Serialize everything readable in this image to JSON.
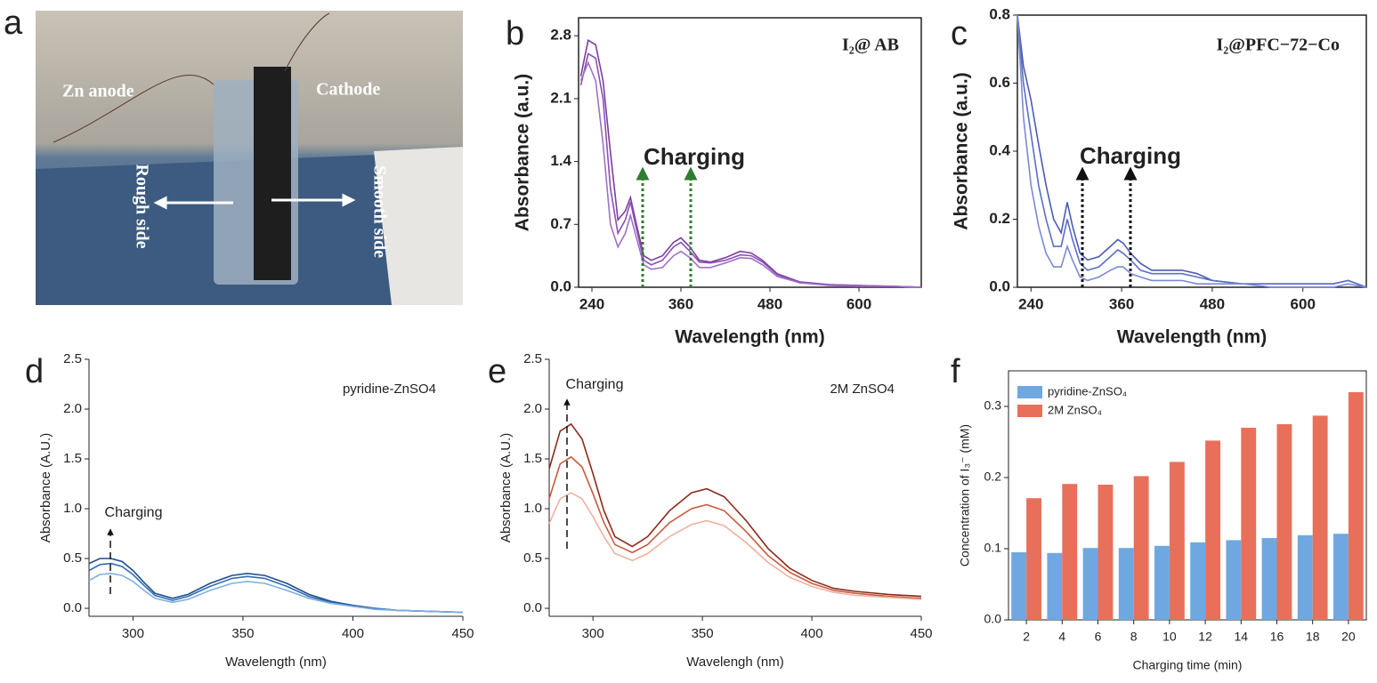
{
  "photo": {
    "panel": "a",
    "labels": [
      "Zn anode",
      "Cathode",
      "Rough side",
      "Smooth side"
    ]
  },
  "chart_data": [
    {
      "type": "line",
      "panel": "b",
      "label": "I₂@ AB",
      "annotation": "Charging",
      "xlabel": "Wavelength (nm)",
      "ylabel": "Absorbance (a.u.)",
      "xlim": [
        222,
        684
      ],
      "ylim": [
        0,
        3.0
      ],
      "xticks": [
        240,
        360,
        480,
        600
      ],
      "yticks": [
        {
          "value": 0,
          "label": "0.0"
        },
        0.7,
        1.4,
        2.1,
        2.8
      ],
      "x": [
        225,
        235,
        245,
        255,
        265,
        275,
        285,
        292,
        300,
        310,
        320,
        335,
        350,
        360,
        372,
        385,
        400,
        420,
        440,
        455,
        470,
        490,
        520,
        560,
        600,
        650,
        684
      ],
      "series": [
        {
          "color": "#7b3fa0",
          "values": [
            2.35,
            2.75,
            2.7,
            2.3,
            1.5,
            0.75,
            0.85,
            1.0,
            0.7,
            0.35,
            0.3,
            0.35,
            0.5,
            0.55,
            0.45,
            0.3,
            0.28,
            0.33,
            0.4,
            0.38,
            0.3,
            0.15,
            0.06,
            0.03,
            0.02,
            0.01,
            0
          ]
        },
        {
          "color": "#8e4fb5",
          "values": [
            2.25,
            2.6,
            2.55,
            2.1,
            1.1,
            0.6,
            0.75,
            0.95,
            0.65,
            0.3,
            0.25,
            0.3,
            0.45,
            0.5,
            0.4,
            0.28,
            0.27,
            0.3,
            0.36,
            0.35,
            0.28,
            0.14,
            0.05,
            0.03,
            0.02,
            0.01,
            0
          ]
        },
        {
          "color": "#a070c8",
          "values": [
            2.3,
            2.5,
            2.3,
            1.6,
            0.7,
            0.45,
            0.6,
            0.8,
            0.55,
            0.25,
            0.2,
            0.22,
            0.35,
            0.4,
            0.33,
            0.22,
            0.22,
            0.27,
            0.33,
            0.32,
            0.25,
            0.12,
            0.05,
            0.02,
            0.01,
            0.01,
            0
          ]
        }
      ]
    },
    {
      "type": "line",
      "panel": "c",
      "label": "I₂@PFC−72−Co",
      "annotation": "Charging",
      "xlabel": "Wavelength (nm)",
      "ylabel": "Absorbance (a.u.)",
      "xlim": [
        222,
        684
      ],
      "ylim": [
        0,
        0.8
      ],
      "xticks": [
        240,
        360,
        480,
        600
      ],
      "yticks": [
        {
          "value": 0,
          "label": "0.0"
        },
        0.2,
        0.4,
        0.6,
        0.8
      ],
      "x": [
        222,
        230,
        240,
        250,
        260,
        270,
        280,
        288,
        295,
        305,
        315,
        330,
        345,
        355,
        362,
        372,
        385,
        400,
        420,
        440,
        460,
        480,
        520,
        560,
        600,
        640,
        660,
        684
      ],
      "series": [
        {
          "color": "#4a5cb5",
          "values": [
            0.8,
            0.65,
            0.55,
            0.42,
            0.3,
            0.2,
            0.16,
            0.25,
            0.18,
            0.1,
            0.08,
            0.09,
            0.12,
            0.14,
            0.13,
            0.1,
            0.07,
            0.05,
            0.05,
            0.05,
            0.04,
            0.02,
            0.01,
            0.01,
            0.01,
            0.01,
            0.02,
            0
          ]
        },
        {
          "color": "#5b6fc7",
          "values": [
            0.8,
            0.6,
            0.45,
            0.3,
            0.2,
            0.12,
            0.12,
            0.2,
            0.14,
            0.07,
            0.05,
            0.06,
            0.09,
            0.11,
            0.1,
            0.08,
            0.05,
            0.04,
            0.04,
            0.04,
            0.03,
            0.02,
            0.01,
            0.01,
            0.01,
            0.01,
            0.02,
            0
          ]
        },
        {
          "color": "#7a8ad6",
          "values": [
            0.8,
            0.5,
            0.3,
            0.18,
            0.1,
            0.06,
            0.06,
            0.12,
            0.08,
            0.03,
            0.02,
            0.03,
            0.05,
            0.06,
            0.06,
            0.04,
            0.03,
            0.02,
            0.02,
            0.02,
            0.01,
            0.01,
            0.01,
            0,
            0,
            0,
            0.01,
            0
          ]
        }
      ]
    },
    {
      "type": "line",
      "panel": "d",
      "label": "pyridine-ZnSO4",
      "annotation": "Charging",
      "xlabel": "Wavelength (nm)",
      "ylabel": "Absorbance (A.U.)",
      "xlim": [
        280,
        450
      ],
      "ylim": [
        -0.08,
        2.5
      ],
      "xticks": [
        300,
        350,
        400,
        450
      ],
      "yticks": [
        {
          "value": 0,
          "label": "0.0"
        },
        0.5,
        {
          "value": 1,
          "label": "1.0"
        },
        1.5,
        {
          "value": 2,
          "label": "2.0"
        },
        2.5
      ],
      "x": [
        280,
        285,
        290,
        295,
        300,
        305,
        310,
        318,
        325,
        335,
        345,
        352,
        360,
        370,
        380,
        390,
        400,
        410,
        420,
        435,
        450
      ],
      "series": [
        {
          "color": "#1f4e8c",
          "values": [
            0.45,
            0.5,
            0.5,
            0.47,
            0.38,
            0.26,
            0.15,
            0.1,
            0.14,
            0.25,
            0.33,
            0.35,
            0.33,
            0.25,
            0.14,
            0.07,
            0.03,
            0,
            -0.02,
            -0.03,
            -0.04
          ]
        },
        {
          "color": "#2f6eb5",
          "values": [
            0.38,
            0.44,
            0.45,
            0.42,
            0.34,
            0.23,
            0.13,
            0.08,
            0.12,
            0.22,
            0.3,
            0.32,
            0.3,
            0.22,
            0.12,
            0.06,
            0.02,
            0,
            -0.02,
            -0.03,
            -0.04
          ]
        },
        {
          "color": "#7fb0e0",
          "values": [
            0.28,
            0.34,
            0.35,
            0.33,
            0.27,
            0.18,
            0.1,
            0.06,
            0.09,
            0.18,
            0.25,
            0.27,
            0.25,
            0.18,
            0.1,
            0.05,
            0.02,
            -0.01,
            -0.02,
            -0.03,
            -0.04
          ]
        }
      ]
    },
    {
      "type": "line",
      "panel": "e",
      "label": "2M ZnSO4",
      "annotation": "Charging",
      "xlabel": "Wavelengh (nm)",
      "ylabel": "Absorbance (A.U.)",
      "xlim": [
        280,
        450
      ],
      "ylim": [
        -0.08,
        2.5
      ],
      "xticks": [
        300,
        350,
        400,
        450
      ],
      "yticks": [
        {
          "value": 0,
          "label": "0.0"
        },
        0.5,
        {
          "value": 1,
          "label": "1.0"
        },
        1.5,
        {
          "value": 2,
          "label": "2.0"
        },
        2.5
      ],
      "x": [
        280,
        285,
        290,
        295,
        300,
        305,
        310,
        318,
        325,
        335,
        345,
        352,
        360,
        370,
        380,
        390,
        400,
        410,
        420,
        435,
        450
      ],
      "series": [
        {
          "color": "#8b2a1a",
          "values": [
            1.4,
            1.78,
            1.85,
            1.7,
            1.35,
            0.98,
            0.72,
            0.62,
            0.72,
            0.98,
            1.16,
            1.2,
            1.12,
            0.88,
            0.6,
            0.4,
            0.28,
            0.2,
            0.17,
            0.14,
            0.12
          ]
        },
        {
          "color": "#c85a3c",
          "values": [
            1.1,
            1.45,
            1.52,
            1.42,
            1.15,
            0.86,
            0.64,
            0.56,
            0.64,
            0.86,
            1.0,
            1.04,
            0.98,
            0.77,
            0.53,
            0.36,
            0.25,
            0.18,
            0.15,
            0.12,
            0.1
          ]
        },
        {
          "color": "#f0b0a0",
          "values": [
            0.85,
            1.1,
            1.16,
            1.1,
            0.92,
            0.72,
            0.55,
            0.48,
            0.55,
            0.72,
            0.84,
            0.88,
            0.83,
            0.66,
            0.46,
            0.31,
            0.22,
            0.16,
            0.13,
            0.11,
            0.09
          ]
        }
      ]
    },
    {
      "type": "bar",
      "panel": "f",
      "xlabel": "Charging time (min)",
      "ylabel": "Concentration of I₃⁻ (mM)",
      "categories": [
        "2",
        "4",
        "6",
        "8",
        "10",
        "12",
        "14",
        "16",
        "18",
        "20"
      ],
      "ylim": [
        0,
        0.35
      ],
      "yticks": [
        {
          "value": 0,
          "label": "0.0"
        },
        0.1,
        0.2,
        0.3
      ],
      "series": [
        {
          "name": "pyridine-ZnSO₄",
          "color": "#6fa8e0",
          "values": [
            0.095,
            0.094,
            0.101,
            0.101,
            0.104,
            0.109,
            0.112,
            0.115,
            0.119,
            0.121
          ]
        },
        {
          "name": "2M ZnSO₄",
          "color": "#e8705a",
          "values": [
            0.171,
            0.191,
            0.19,
            0.202,
            0.222,
            0.252,
            0.27,
            0.275,
            0.287,
            0.32
          ]
        }
      ]
    }
  ]
}
